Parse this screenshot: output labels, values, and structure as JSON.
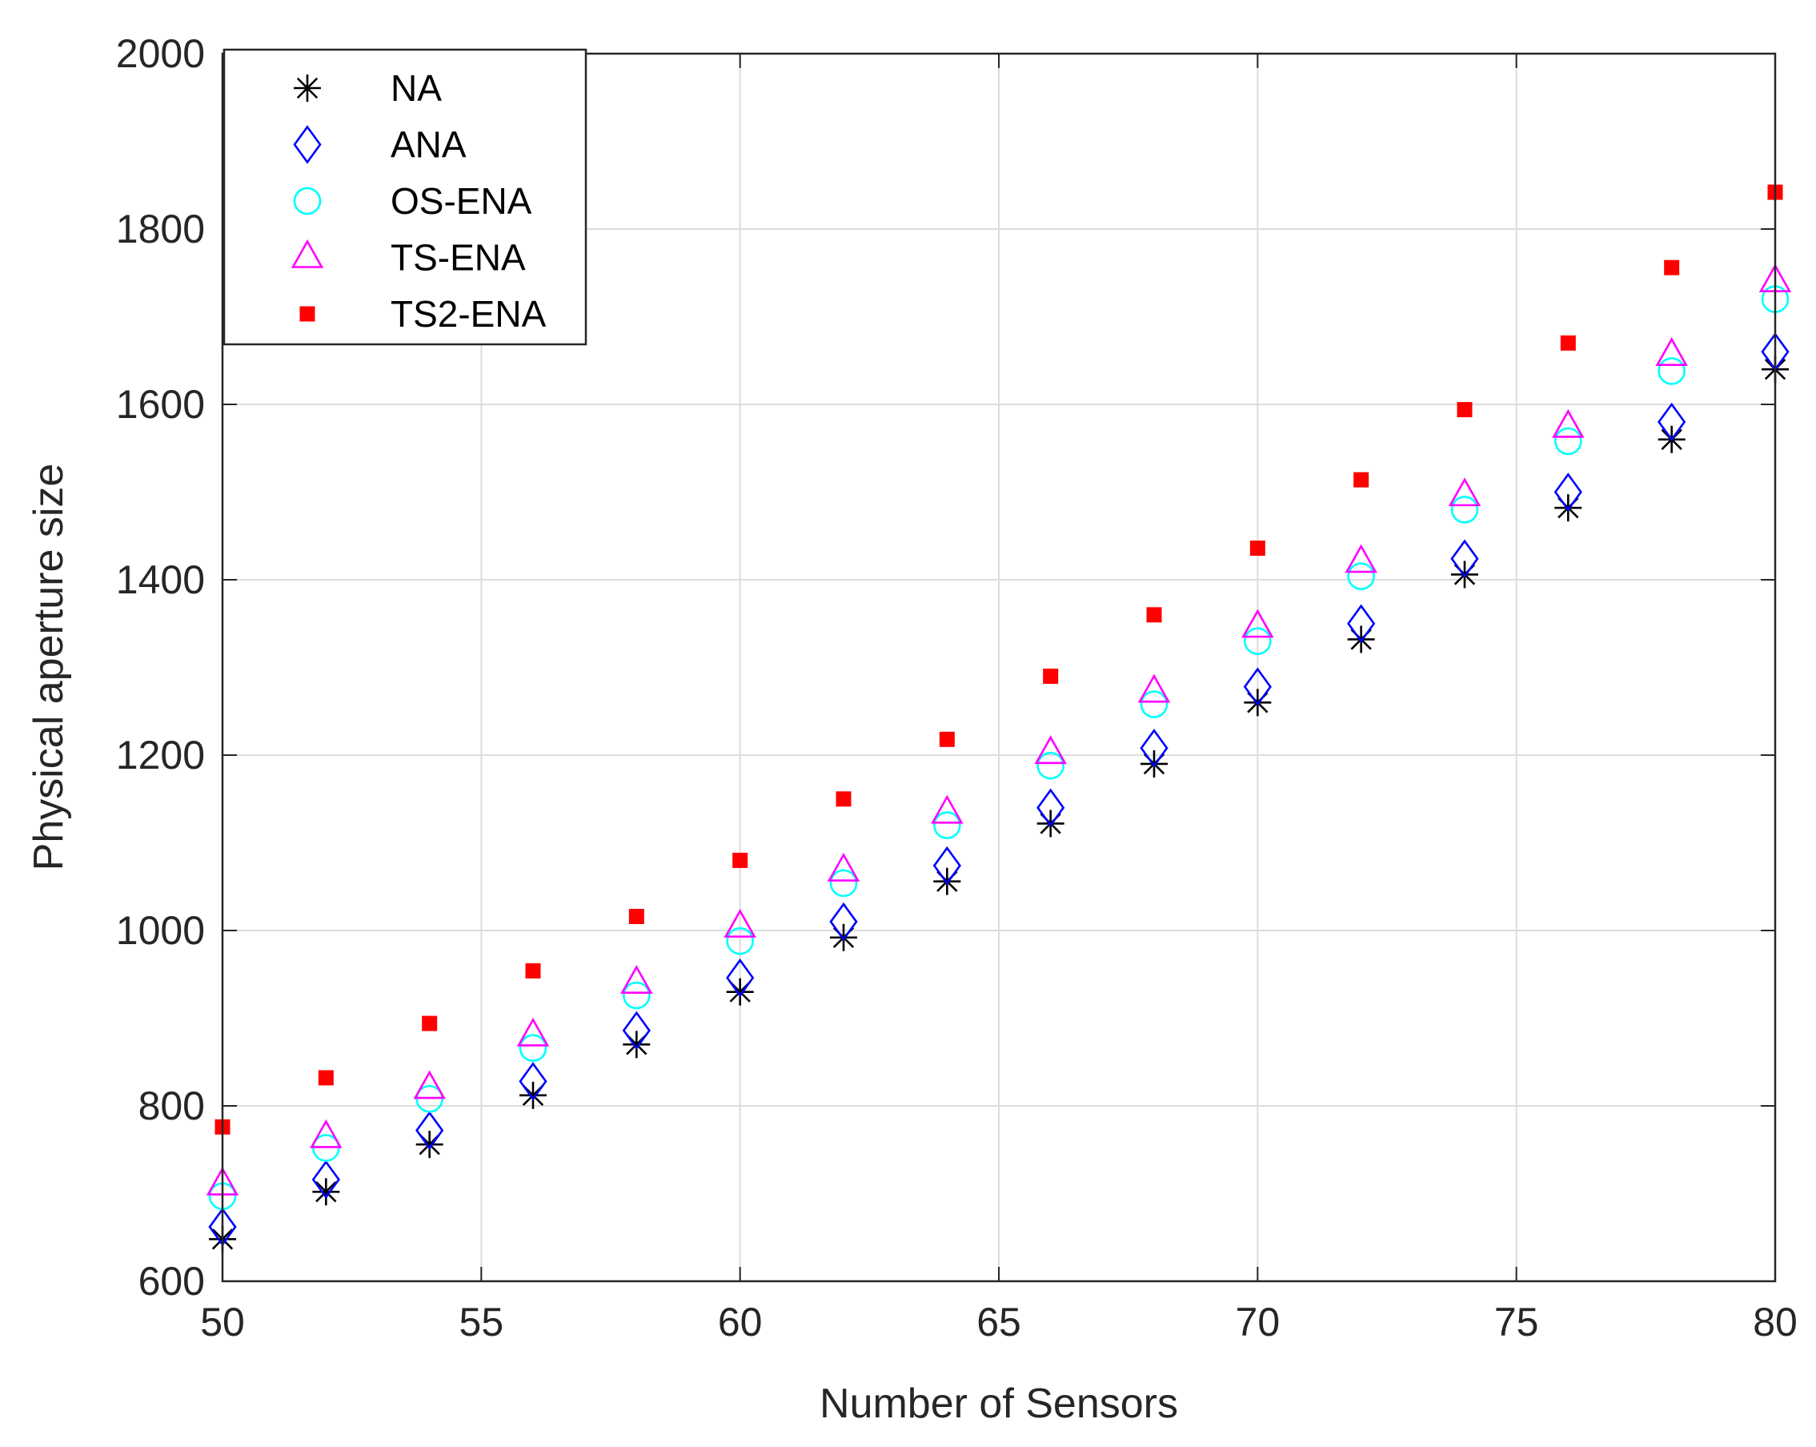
{
  "chart_data": {
    "type": "scatter",
    "title": "",
    "xlabel": "Number of Sensors",
    "ylabel": "Physical aperture size",
    "xlim": [
      50,
      80
    ],
    "ylim": [
      600,
      2000
    ],
    "xticks": [
      50,
      55,
      60,
      65,
      70,
      75,
      80
    ],
    "yticks": [
      600,
      800,
      1000,
      1200,
      1400,
      1600,
      1800,
      2000
    ],
    "grid": true,
    "legend_position": "top-left",
    "x": [
      50,
      52,
      54,
      56,
      58,
      60,
      62,
      64,
      66,
      68,
      70,
      72,
      74,
      76,
      78,
      80
    ],
    "series": [
      {
        "name": "NA",
        "marker": "asterisk",
        "color": "#000000",
        "values": [
          648,
          702,
          756,
          812,
          870,
          930,
          992,
          1056,
          1122,
          1190,
          1260,
          1332,
          1406,
          1482,
          1560,
          1640
        ]
      },
      {
        "name": "ANA",
        "marker": "diamond",
        "color": "#0000ff",
        "values": [
          662,
          716,
          772,
          828,
          886,
          946,
          1010,
          1074,
          1140,
          1208,
          1278,
          1350,
          1424,
          1500,
          1580,
          1660
        ]
      },
      {
        "name": "OS-ENA",
        "marker": "circle",
        "color": "#00ffff",
        "values": [
          697,
          752,
          808,
          866,
          926,
          988,
          1054,
          1120,
          1188,
          1258,
          1330,
          1404,
          1480,
          1558,
          1638,
          1720
        ]
      },
      {
        "name": "TS-ENA",
        "marker": "triangle",
        "color": "#ff00ff",
        "values": [
          710,
          764,
          820,
          880,
          940,
          1004,
          1068,
          1134,
          1202,
          1272,
          1346,
          1420,
          1496,
          1574,
          1656,
          1740
        ]
      },
      {
        "name": "TS2-ENA",
        "marker": "square",
        "color": "#ff0000",
        "values": [
          776,
          832,
          894,
          954,
          1016,
          1080,
          1150,
          1218,
          1290,
          1360,
          1436,
          1514,
          1594,
          1670,
          1756,
          1842
        ]
      }
    ]
  }
}
